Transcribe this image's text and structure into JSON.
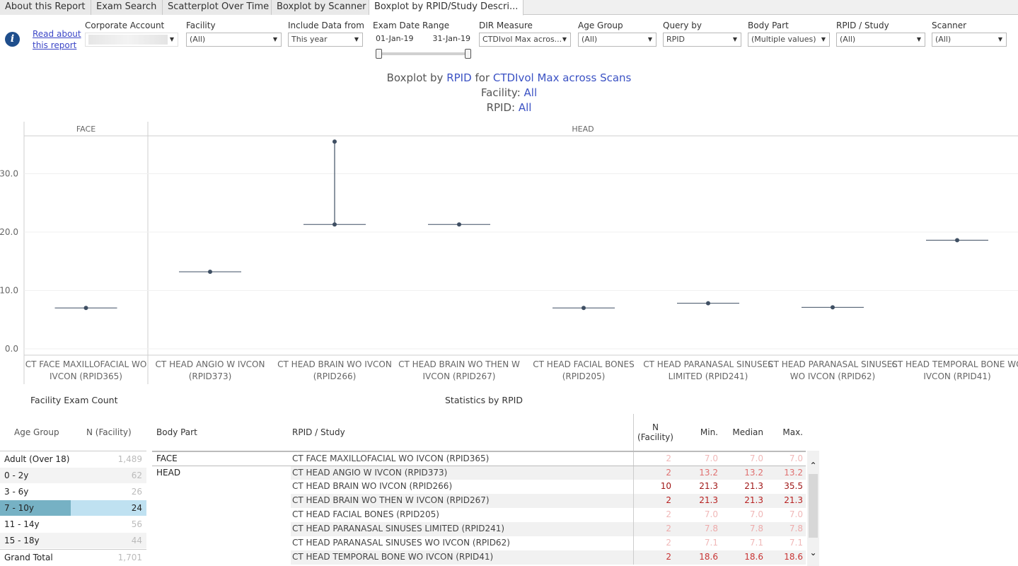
{
  "tabs": [
    {
      "label": "About this Report",
      "width": 0
    },
    {
      "label": "Exam Search"
    },
    {
      "label": "Scatterplot Over Time"
    },
    {
      "label": "Boxplot by Scanner"
    },
    {
      "label": "Boxplot by RPID/Study Descri..."
    }
  ],
  "info": {
    "link_text": "Read about this report"
  },
  "filters": {
    "corporate_account": {
      "label": "Corporate Account",
      "value": ""
    },
    "facility": {
      "label": "Facility",
      "value": "(All)"
    },
    "include_data_from": {
      "label": "Include Data from",
      "value": "This year"
    },
    "exam_date_range": {
      "label": "Exam Date Range",
      "start": "01-Jan-19",
      "end": "31-Jan-19"
    },
    "dir_measure": {
      "label": "DIR Measure",
      "value": "CTDIvol Max acros..."
    },
    "age_group": {
      "label": "Age Group",
      "value": "(All)"
    },
    "query_by": {
      "label": "Query by",
      "value": "RPID"
    },
    "body_part": {
      "label": "Body Part",
      "value": "(Multiple values)"
    },
    "rpid_study": {
      "label": "RPID / Study",
      "value": "(All)"
    },
    "scanner": {
      "label": "Scanner",
      "value": "(All)"
    }
  },
  "title": {
    "line1_prefix": "Boxplot by ",
    "line1_query": "RPID",
    "line1_for": " for ",
    "line1_measure": "CTDIvol Max across Scans",
    "line2_label": "Facility: ",
    "line2_value": "All",
    "line3_label": "RPID: ",
    "line3_value": "All"
  },
  "chart_data": {
    "type": "boxplot",
    "panels": [
      "FACE",
      "HEAD"
    ],
    "yticks": [
      "0.0",
      "10.0",
      "20.0",
      "30.0"
    ],
    "ylim": [
      0,
      37
    ],
    "categories": [
      {
        "panel": "FACE",
        "label": [
          "CT FACE MAXILLOFACIAL WO",
          "IVCON (RPID365)"
        ],
        "min": 7.0,
        "median": 7.0,
        "max": 7.0
      },
      {
        "panel": "HEAD",
        "label": [
          "CT HEAD ANGIO W IVCON",
          "(RPID373)"
        ],
        "min": 13.2,
        "median": 13.2,
        "max": 13.2
      },
      {
        "panel": "HEAD",
        "label": [
          "CT HEAD BRAIN WO IVCON",
          "(RPID266)"
        ],
        "min": 21.3,
        "median": 21.3,
        "max": 35.5
      },
      {
        "panel": "HEAD",
        "label": [
          "CT HEAD BRAIN WO THEN W",
          "IVCON (RPID267)"
        ],
        "min": 21.3,
        "median": 21.3,
        "max": 21.3
      },
      {
        "panel": "HEAD",
        "label": [
          "CT HEAD FACIAL BONES",
          "(RPID205)"
        ],
        "min": 7.0,
        "median": 7.0,
        "max": 7.0
      },
      {
        "panel": "HEAD",
        "label": [
          "CT HEAD PARANASAL SINUSES",
          "LIMITED (RPID241)"
        ],
        "min": 7.8,
        "median": 7.8,
        "max": 7.8
      },
      {
        "panel": "HEAD",
        "label": [
          "CT HEAD PARANASAL SINUSES",
          "WO IVCON (RPID62)"
        ],
        "min": 7.1,
        "median": 7.1,
        "max": 7.1
      },
      {
        "panel": "HEAD",
        "label": [
          "CT HEAD TEMPORAL BONE WO",
          "IVCON (RPID41)"
        ],
        "min": 18.6,
        "median": 18.6,
        "max": 18.6
      }
    ]
  },
  "facility_exam_count": {
    "title": "Facility Exam Count",
    "headers": {
      "age_group": "Age Group",
      "n": "N (Facility)"
    },
    "rows": [
      {
        "age": "Adult (Over 18)",
        "n": "1,489"
      },
      {
        "age": "0 - 2y",
        "n": "62"
      },
      {
        "age": "3 - 6y",
        "n": "26"
      },
      {
        "age": "7 - 10y",
        "n": "24"
      },
      {
        "age": "11 - 14y",
        "n": "56"
      },
      {
        "age": "15 - 18y",
        "n": "44"
      }
    ],
    "total": {
      "age": "Grand Total",
      "n": "1,701"
    }
  },
  "statistics": {
    "title": "Statistics by RPID",
    "headers": {
      "body_part": "Body Part",
      "rpid": "RPID / Study",
      "n": "N (Facility)",
      "min": "Min.",
      "median": "Median",
      "max": "Max."
    },
    "rows": [
      {
        "body": "FACE",
        "rpid": "CT FACE MAXILLOFACIAL WO IVCON (RPID365)",
        "n": "2",
        "min": "7.0",
        "median": "7.0",
        "max": "7.0",
        "color": "#f0b8b8"
      },
      {
        "body": "HEAD",
        "rpid": "CT HEAD ANGIO W IVCON (RPID373)",
        "n": "2",
        "min": "13.2",
        "median": "13.2",
        "max": "13.2",
        "color": "#e07070"
      },
      {
        "body": "",
        "rpid": "CT HEAD BRAIN WO IVCON (RPID266)",
        "n": "10",
        "min": "21.3",
        "median": "21.3",
        "max": "35.5",
        "color": "#a01818"
      },
      {
        "body": "",
        "rpid": "CT HEAD BRAIN WO THEN W IVCON (RPID267)",
        "n": "2",
        "min": "21.3",
        "median": "21.3",
        "max": "21.3",
        "color": "#b82020"
      },
      {
        "body": "",
        "rpid": "CT HEAD FACIAL BONES (RPID205)",
        "n": "2",
        "min": "7.0",
        "median": "7.0",
        "max": "7.0",
        "color": "#f0b8b8"
      },
      {
        "body": "",
        "rpid": "CT HEAD PARANASAL SINUSES LIMITED (RPID241)",
        "n": "2",
        "min": "7.8",
        "median": "7.8",
        "max": "7.8",
        "color": "#eeaaaa"
      },
      {
        "body": "",
        "rpid": "CT HEAD PARANASAL SINUSES WO IVCON (RPID62)",
        "n": "2",
        "min": "7.1",
        "median": "7.1",
        "max": "7.1",
        "color": "#f0b8b8"
      },
      {
        "body": "",
        "rpid": "CT HEAD TEMPORAL BONE WO IVCON (RPID41)",
        "n": "2",
        "min": "18.6",
        "median": "18.6",
        "max": "18.6",
        "color": "#c83434"
      }
    ]
  },
  "colors": {
    "accent": "#3b52c4",
    "marker": "#3f4f63",
    "selected_fill": "#76b1c4",
    "selected_bg": "#bfe1f1"
  }
}
